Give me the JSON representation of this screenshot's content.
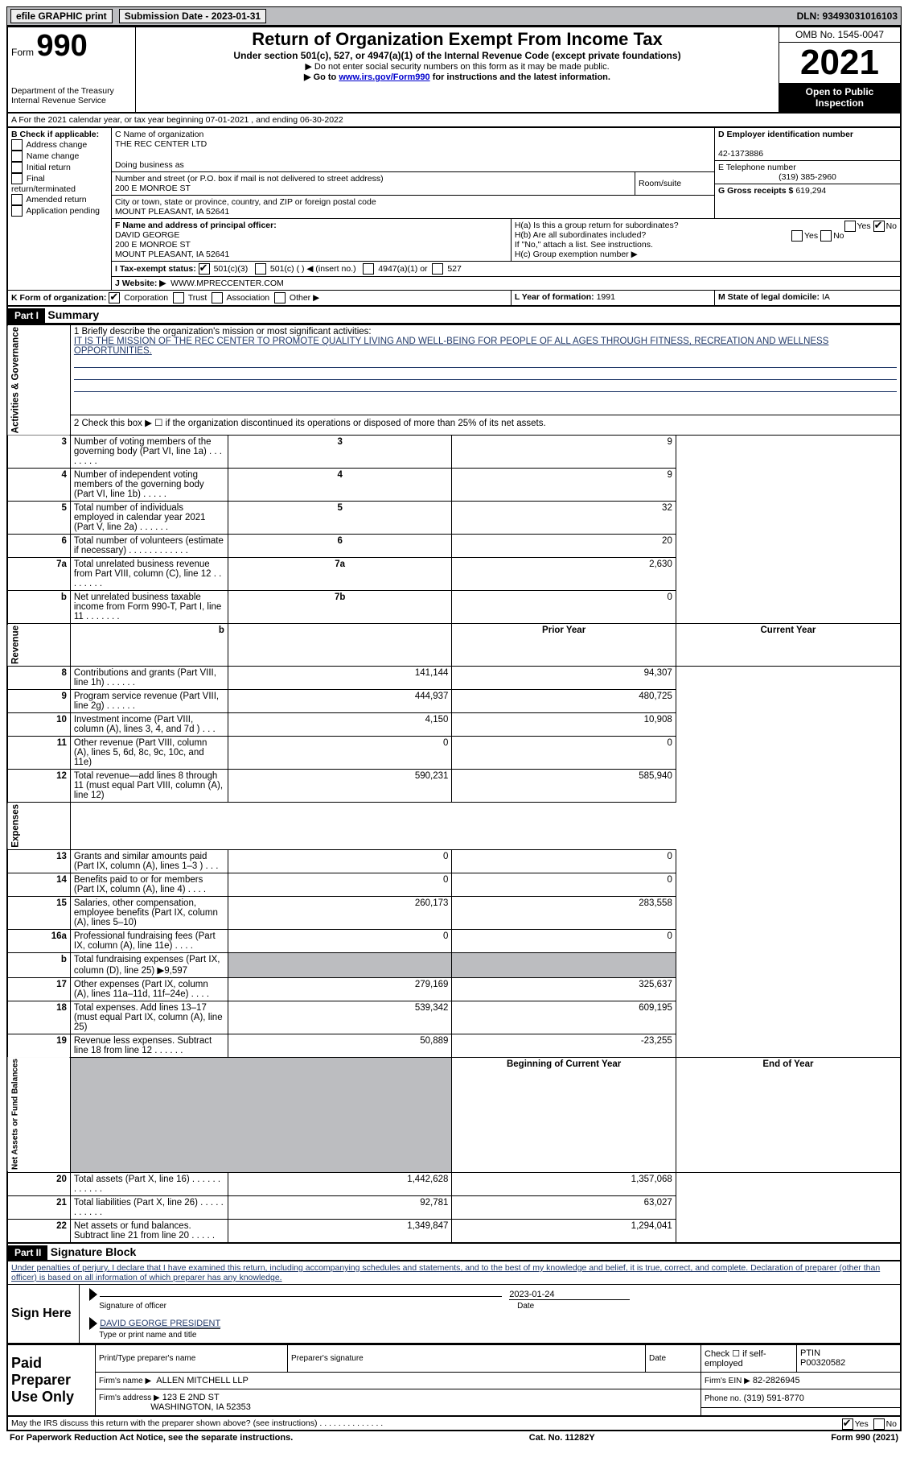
{
  "topbar": {
    "efile": "efile GRAPHIC print",
    "submission": "Submission Date - 2023-01-31",
    "dln": "DLN: 93493031016103"
  },
  "header": {
    "form_label": "Form",
    "form_number": "990",
    "dept": "Department of the Treasury\nInternal Revenue Service",
    "title": "Return of Organization Exempt From Income Tax",
    "subtitle": "Under section 501(c), 527, or 4947(a)(1) of the Internal Revenue Code (except private foundations)",
    "hint1": "▶ Do not enter social security numbers on this form as it may be made public.",
    "hint2_pre": "▶ Go to ",
    "hint2_link": "www.irs.gov/Form990",
    "hint2_post": " for instructions and the latest information.",
    "omb": "OMB No. 1545-0047",
    "year": "2021",
    "open_to_public": "Open to Public Inspection"
  },
  "line_a": "A For the 2021 calendar year, or tax year beginning 07-01-2021   , and ending 06-30-2022",
  "box_b": {
    "label": "B Check if applicable:",
    "items": [
      "Address change",
      "Name change",
      "Initial return",
      "Final return/terminated",
      "Amended return",
      "Application pending"
    ]
  },
  "box_c": {
    "label_name": "C Name of organization",
    "name": "THE REC CENTER LTD",
    "dba_label": "Doing business as",
    "street_label": "Number and street (or P.O. box if mail is not delivered to street address)",
    "room_label": "Room/suite",
    "street": "200 E MONROE ST",
    "city_label": "City or town, state or province, country, and ZIP or foreign postal code",
    "city": "MOUNT PLEASANT, IA  52641"
  },
  "box_d": {
    "label": "D Employer identification number",
    "value": "42-1373886"
  },
  "box_e": {
    "label": "E Telephone number",
    "value": "(319) 385-2960"
  },
  "box_g": {
    "label": "G Gross receipts $",
    "value": "619,294"
  },
  "box_f": {
    "label": "F Name and address of principal officer:",
    "line1": "DAVID GEORGE",
    "line2": "200 E MONROE ST",
    "line3": "MOUNT PLEASANT, IA  52641"
  },
  "box_h": {
    "ha": "H(a)  Is this a group return for subordinates?",
    "hb": "H(b)  Are all subordinates included?",
    "hb_note": "If \"No,\" attach a list. See instructions.",
    "hc": "H(c)  Group exemption number ▶",
    "yes": "Yes",
    "no": "No"
  },
  "box_i": {
    "label": "I    Tax-exempt status:",
    "opt1": "501(c)(3)",
    "opt2": "501(c) (  ) ◀ (insert no.)",
    "opt3": "4947(a)(1) or",
    "opt4": "527"
  },
  "box_j": {
    "label": "J    Website: ▶",
    "value": "WWW.MPRECCENTER.COM"
  },
  "box_k": {
    "label": "K Form of organization:",
    "corp": "Corporation",
    "trust": "Trust",
    "assoc": "Association",
    "other": "Other ▶"
  },
  "box_l": {
    "label": "L Year of formation:",
    "value": "1991"
  },
  "box_m": {
    "label": "M State of legal domicile:",
    "value": "IA"
  },
  "part1": {
    "label": "Part I",
    "title": "Summary",
    "line1_label": "1   Briefly describe the organization's mission or most significant activities:",
    "line1_text": "IT IS THE MISSION OF THE REC CENTER TO PROMOTE QUALITY LIVING AND WELL-BEING FOR PEOPLE OF ALL AGES THROUGH FITNESS, RECREATION AND WELLNESS OPPORTUNITIES.",
    "line2": "2   Check this box ▶ ☐ if the organization discontinued its operations or disposed of more than 25% of its net assets.",
    "sidebar_activities": "Activities & Governance",
    "sidebar_revenue": "Revenue",
    "sidebar_expenses": "Expenses",
    "sidebar_netassets": "Net Assets or Fund Balances",
    "rows_ag": [
      {
        "n": "3",
        "label": "Number of voting members of the governing body (Part VI, line 1a)  .   .   .   .   .   .   .   .",
        "box": "3",
        "val": "9"
      },
      {
        "n": "4",
        "label": "Number of independent voting members of the governing body (Part VI, line 1b)  .   .   .   .   .",
        "box": "4",
        "val": "9"
      },
      {
        "n": "5",
        "label": "Total number of individuals employed in calendar year 2021 (Part V, line 2a)  .   .   .   .   .   .",
        "box": "5",
        "val": "32"
      },
      {
        "n": "6",
        "label": "Total number of volunteers (estimate if necessary)   .   .   .   .   .   .   .   .   .   .   .   .",
        "box": "6",
        "val": "20"
      },
      {
        "n": "7a",
        "label": "Total unrelated business revenue from Part VIII, column (C), line 12  .   .   .   .   .   .   .   .",
        "box": "7a",
        "val": "2,630"
      },
      {
        "n": "b",
        "label": "Net unrelated business taxable income from Form 990-T, Part I, line 11  .   .   .   .   .   .   .",
        "box": "7b",
        "val": "0"
      }
    ],
    "prior_year_label": "Prior Year",
    "current_year_label": "Current Year",
    "rows_rev": [
      {
        "n": "8",
        "label": "Contributions and grants (Part VIII, line 1h)   .   .   .   .   .   .",
        "py": "141,144",
        "cy": "94,307"
      },
      {
        "n": "9",
        "label": "Program service revenue (Part VIII, line 2g)   .   .   .   .   .   .",
        "py": "444,937",
        "cy": "480,725"
      },
      {
        "n": "10",
        "label": "Investment income (Part VIII, column (A), lines 3, 4, and 7d )   .   .   .",
        "py": "4,150",
        "cy": "10,908"
      },
      {
        "n": "11",
        "label": "Other revenue (Part VIII, column (A), lines 5, 6d, 8c, 9c, 10c, and 11e)",
        "py": "0",
        "cy": "0"
      },
      {
        "n": "12",
        "label": "Total revenue—add lines 8 through 11 (must equal Part VIII, column (A), line 12)",
        "py": "590,231",
        "cy": "585,940"
      }
    ],
    "rows_exp": [
      {
        "n": "13",
        "label": "Grants and similar amounts paid (Part IX, column (A), lines 1–3 )   .   .   .",
        "py": "0",
        "cy": "0"
      },
      {
        "n": "14",
        "label": "Benefits paid to or for members (Part IX, column (A), line 4)  .   .   .   .",
        "py": "0",
        "cy": "0"
      },
      {
        "n": "15",
        "label": "Salaries, other compensation, employee benefits (Part IX, column (A), lines 5–10)",
        "py": "260,173",
        "cy": "283,558"
      },
      {
        "n": "16a",
        "label": "Professional fundraising fees (Part IX, column (A), line 11e)  .   .   .   .",
        "py": "0",
        "cy": "0"
      },
      {
        "n": "b",
        "label": "Total fundraising expenses (Part IX, column (D), line 25) ▶9,597",
        "py": "",
        "cy": "",
        "shaded": true
      },
      {
        "n": "17",
        "label": "Other expenses (Part IX, column (A), lines 11a–11d, 11f–24e)  .   .   .   .",
        "py": "279,169",
        "cy": "325,637"
      },
      {
        "n": "18",
        "label": "Total expenses. Add lines 13–17 (must equal Part IX, column (A), line 25)",
        "py": "539,342",
        "cy": "609,195"
      },
      {
        "n": "19",
        "label": "Revenue less expenses. Subtract line 18 from line 12  .   .   .   .   .   .",
        "py": "50,889",
        "cy": "-23,255"
      }
    ],
    "begin_year_label": "Beginning of Current Year",
    "end_year_label": "End of Year",
    "rows_na": [
      {
        "n": "20",
        "label": "Total assets (Part X, line 16)  .   .   .   .   .   .   .   .   .   .   .   .",
        "py": "1,442,628",
        "cy": "1,357,068"
      },
      {
        "n": "21",
        "label": "Total liabilities (Part X, line 26)  .   .   .   .   .   .   .   .   .   .   .",
        "py": "92,781",
        "cy": "63,027"
      },
      {
        "n": "22",
        "label": "Net assets or fund balances. Subtract line 21 from line 20  .   .   .   .   .",
        "py": "1,349,847",
        "cy": "1,294,041"
      }
    ]
  },
  "part2": {
    "label": "Part II",
    "title": "Signature Block",
    "penalty": "Under penalties of perjury, I declare that I have examined this return, including accompanying schedules and statements, and to the best of my knowledge and belief, it is true, correct, and complete. Declaration of preparer (other than officer) is based on all information of which preparer has any knowledge.",
    "sign_here": "Sign Here",
    "sig_officer": "Signature of officer",
    "sig_date_label": "Date",
    "sig_date": "2023-01-24",
    "sig_name": "DAVID GEORGE PRESIDENT",
    "sig_name_label": "Type or print name and title",
    "paid_label": "Paid Preparer Use Only",
    "prep_name_label": "Print/Type preparer's name",
    "prep_sig_label": "Preparer's signature",
    "date_label": "Date",
    "check_self": "Check ☐ if self-employed",
    "ptin_label": "PTIN",
    "ptin": "P00320582",
    "firm_name_label": "Firm's name   ▶",
    "firm_name": "ALLEN MITCHELL LLP",
    "firm_ein_label": "Firm's EIN ▶",
    "firm_ein": "82-2826945",
    "firm_addr_label": "Firm's address ▶",
    "firm_addr1": "123 E 2ND ST",
    "firm_addr2": "WASHINGTON, IA  52353",
    "phone_label": "Phone no.",
    "phone": "(319) 591-8770",
    "may_irs": "May the IRS discuss this return with the preparer shown above? (see instructions)   .   .   .   .   .   .   .   .   .   .   .   .   .   .",
    "yes": "Yes",
    "no": "No"
  },
  "footer": {
    "left": "For Paperwork Reduction Act Notice, see the separate instructions.",
    "mid": "Cat. No. 11282Y",
    "right": "Form 990 (2021)"
  },
  "colors": {
    "header_gray": "#bcbdc0",
    "link_blue": "#0000cc",
    "navy": "#223a6a"
  }
}
